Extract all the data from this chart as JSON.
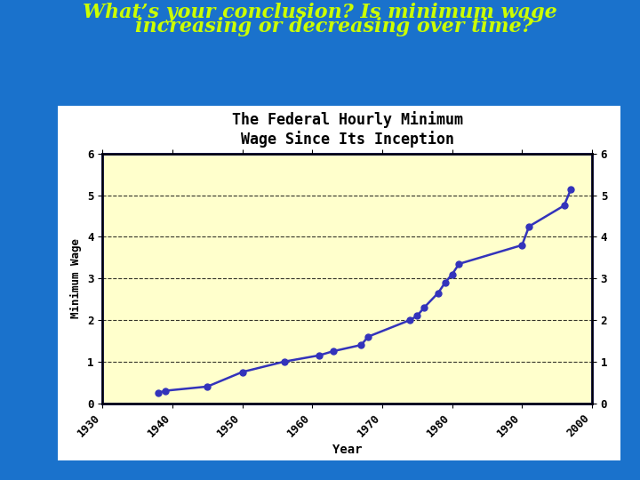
{
  "title": "The Federal Hourly Minimum\nWage Since Its Inception",
  "xlabel": "Year",
  "ylabel": "Minimum Wage",
  "question_line1": "What’s your conclusion? Is minimum wage",
  "question_line2": "    increasing or decreasing over time?",
  "background_outer": "#1a72cc",
  "background_chart_area": "#ffffff",
  "background_plot": "#ffffcc",
  "years": [
    1938,
    1939,
    1945,
    1950,
    1956,
    1961,
    1963,
    1967,
    1968,
    1974,
    1975,
    1976,
    1978,
    1979,
    1980,
    1981,
    1990,
    1991,
    1996,
    1997
  ],
  "wages": [
    0.25,
    0.3,
    0.4,
    0.75,
    1.0,
    1.15,
    1.25,
    1.4,
    1.6,
    2.0,
    2.1,
    2.3,
    2.65,
    2.9,
    3.1,
    3.35,
    3.8,
    4.25,
    4.75,
    5.15
  ],
  "line_color": "#3333bb",
  "marker_color": "#3333bb",
  "ylim": [
    0,
    6
  ],
  "xlim": [
    1930,
    2000
  ],
  "xticks": [
    1930,
    1940,
    1950,
    1960,
    1970,
    1980,
    1990,
    2000
  ],
  "yticks": [
    0,
    1,
    2,
    3,
    4,
    5,
    6
  ],
  "title_fontsize": 12,
  "question_fontsize": 16,
  "question_color": "#ccff00",
  "axis_label_fontsize": 9,
  "tick_fontsize": 9
}
